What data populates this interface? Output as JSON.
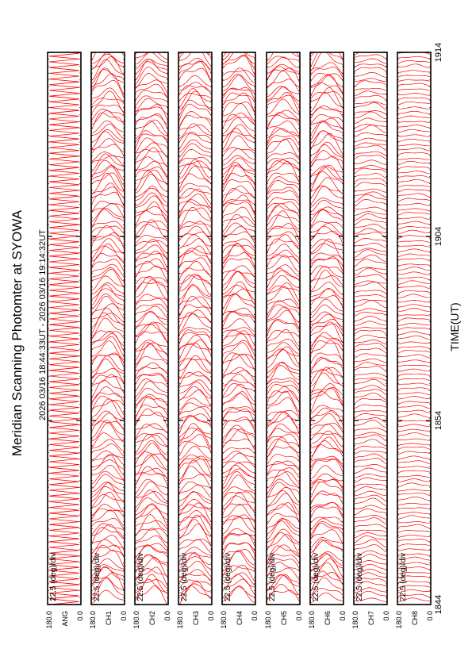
{
  "chart_data": {
    "type": "line",
    "title": "Meridian Scanning Photomter at SYOWA",
    "time_range": "2026 03/16 18:44:33UT - 2026 03/16 19:14:32UT",
    "xlabel": "TIME(UT)",
    "x_ticks": [
      "1844",
      "1854",
      "1904",
      "1914"
    ],
    "xlim": [
      "18:44:33",
      "19:14:32"
    ],
    "ylim": [
      0.0,
      180.0
    ],
    "y_tick_labels": [
      "180.0",
      "0.0"
    ],
    "scale_label": "22.5 (deg)/div",
    "grid": false,
    "series_color": "#ff0000",
    "panels": [
      {
        "channel": "ANG"
      },
      {
        "channel": "CH1"
      },
      {
        "channel": "CH2"
      },
      {
        "channel": "CH3"
      },
      {
        "channel": "CH4"
      },
      {
        "channel": "CH5"
      },
      {
        "channel": "CH6"
      },
      {
        "channel": "CH7"
      },
      {
        "channel": "CH8"
      }
    ]
  }
}
